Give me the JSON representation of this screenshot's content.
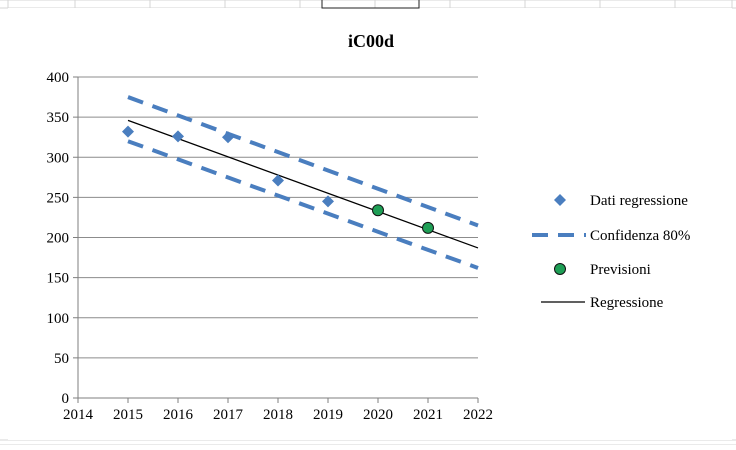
{
  "chart_data": {
    "type": "scatter",
    "title": "iC00d",
    "xlabel": "",
    "ylabel": "",
    "xlim": [
      2014,
      2022
    ],
    "ylim": [
      0,
      400
    ],
    "x_ticks": [
      "2014",
      "2015",
      "2016",
      "2017",
      "2018",
      "2019",
      "2020",
      "2021",
      "2022"
    ],
    "y_ticks": [
      "0",
      "50",
      "100",
      "150",
      "200",
      "250",
      "300",
      "350",
      "400"
    ],
    "grid": "horizontal",
    "legend_position": "right",
    "series": [
      {
        "name": "Dati regressione",
        "kind": "scatter",
        "marker": "diamond",
        "color": "#4a7ebf",
        "x": [
          2015,
          2016,
          2017,
          2018,
          2019
        ],
        "values": [
          332,
          326,
          325,
          271,
          245
        ]
      },
      {
        "name": "Confidenza 80%",
        "kind": "line",
        "style": "dashed",
        "color": "#4a7ebf",
        "upper": {
          "x": [
            2015,
            2022
          ],
          "values": [
            375,
            215
          ]
        },
        "lower": {
          "x": [
            2015,
            2022
          ],
          "values": [
            320,
            162
          ]
        }
      },
      {
        "name": "Previsioni",
        "kind": "scatter",
        "marker": "circle",
        "color": "#1e9e55",
        "x": [
          2020,
          2021
        ],
        "values": [
          234,
          212
        ]
      },
      {
        "name": "Regressione",
        "kind": "line",
        "style": "solid",
        "color": "#000000",
        "x": [
          2015,
          2022
        ],
        "values": [
          346,
          187
        ]
      }
    ]
  }
}
